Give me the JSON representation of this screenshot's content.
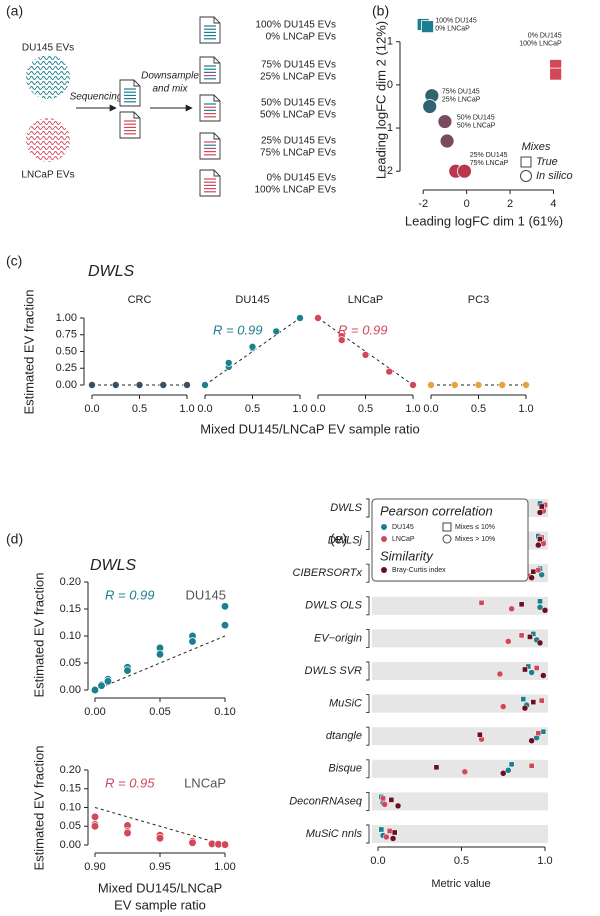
{
  "panel_labels": [
    "(a)",
    "(b)",
    "(c)",
    "(d)",
    "(e)"
  ],
  "diagram": {
    "samples": [
      "DU145 EVs",
      "LNCaP EVs"
    ],
    "step1": "Sequencing",
    "step2": [
      "Downsample",
      "and mix"
    ],
    "mixes": [
      [
        "100% DU145 EVs",
        "0% LNCaP EVs"
      ],
      [
        "75% DU145 EVs",
        "25% LNCaP EVs"
      ],
      [
        "50% DU145 EVs",
        "50% LNCaP EVs"
      ],
      [
        "25% DU145 EVs",
        "75% LNCaP EVs"
      ],
      [
        "0% DU145 EVs",
        "100% LNCaP EVs"
      ]
    ]
  },
  "chart_data": [
    {
      "type": "scatter_groups",
      "xlabel": "Leading logFC dim 1 (61%)",
      "ylabel": "Leading logFC dim 2 (12%)",
      "xlim": [
        -2.7,
        4.3
      ],
      "xticks": [
        -2,
        0,
        2,
        4
      ],
      "ylim": [
        -2.25,
        1.55
      ],
      "yticks": [
        -2,
        -1,
        0,
        1
      ],
      "legend_title": "Mixes",
      "legend": [
        {
          "label": "True",
          "shape": "square"
        },
        {
          "label": "In silico",
          "shape": "circle"
        }
      ],
      "groups": [
        {
          "label": [
            "100% DU145",
            "0% LNCaP"
          ],
          "color": "#1b7f8f",
          "shape": "square",
          "x": [
            -2.0,
            -1.8
          ],
          "y": [
            1.4,
            1.35
          ]
        },
        {
          "label": [
            "0% DU145",
            "100% LNCaP"
          ],
          "color": "#d3475b",
          "shape": "square",
          "x": [
            4.1,
            4.1
          ],
          "y": [
            0.45,
            0.25
          ]
        },
        {
          "label": [
            "75% DU145",
            "25% LNCaP"
          ],
          "color": "#2f6273",
          "shape": "circle",
          "x": [
            -1.6,
            -1.7
          ],
          "y": [
            -0.25,
            -0.5
          ]
        },
        {
          "label": [
            "50% DU145",
            "50% LNCaP"
          ],
          "color": "#7a4a5e",
          "shape": "circle",
          "x": [
            -1.0,
            -0.9
          ],
          "y": [
            -0.85,
            -1.3
          ]
        },
        {
          "label": [
            "25% DU145",
            "75% LNCaP"
          ],
          "color": "#b8374f",
          "shape": "circle",
          "x": [
            -0.5,
            -0.1
          ],
          "y": [
            -2.0,
            -2.0
          ]
        }
      ]
    },
    {
      "type": "facet_scatter",
      "title": "DWLS",
      "ylabel": "Estimated EV fraction",
      "xlabel": "Mixed DU145/LNCaP EV sample ratio",
      "ylim": [
        0,
        1
      ],
      "yticks": [
        {
          "value": 0,
          "label": "0.00"
        },
        0.25,
        {
          "value": 0.5,
          "label": "0.50"
        },
        0.75,
        {
          "value": 1,
          "label": "1.00"
        }
      ],
      "xlim": [
        0,
        1
      ],
      "xticks": [
        {
          "value": 0,
          "label": "0.0"
        },
        0.5,
        {
          "value": 1,
          "label": "1.0"
        }
      ],
      "facets": [
        {
          "name": "CRC",
          "color": "#3b4f63",
          "x": [
            0,
            0.25,
            0.5,
            0.75,
            1
          ],
          "values": [
            0,
            0,
            0,
            0,
            0
          ],
          "reference": {
            "x": [
              0,
              1
            ],
            "y": [
              0,
              0
            ]
          }
        },
        {
          "name": "DU145",
          "color": "#1b7f8f",
          "annotation": "R = 0.99",
          "x": [
            0,
            0.25,
            0.25,
            0.5,
            0.5,
            0.75,
            1
          ],
          "values": [
            0,
            0.27,
            0.33,
            0.55,
            0.57,
            0.8,
            1
          ],
          "reference": {
            "x": [
              0,
              1
            ],
            "y": [
              0,
              1
            ]
          }
        },
        {
          "name": "LNCaP",
          "color": "#d3475b",
          "annotation": "R = 0.99",
          "x": [
            0,
            0.25,
            0.25,
            0.5,
            0.75,
            1
          ],
          "values": [
            1,
            0.73,
            0.67,
            0.45,
            0.2,
            0
          ],
          "reference": {
            "x": [
              0,
              1
            ],
            "y": [
              1,
              0
            ]
          }
        },
        {
          "name": "PC3",
          "color": "#e8a23c",
          "x": [
            0,
            0.25,
            0.5,
            0.75,
            1
          ],
          "values": [
            0,
            0,
            0,
            0,
            0
          ],
          "reference": {
            "x": [
              0,
              1
            ],
            "y": [
              0,
              0
            ]
          }
        }
      ]
    },
    {
      "type": "scatter_ref",
      "title": "DWLS",
      "annotation": "R = 0.99",
      "label": "DU145",
      "color": "#1b7f8f",
      "ylabel": "Estimated EV fraction",
      "xlim": [
        0,
        0.1
      ],
      "xticks": [
        {
          "value": 0,
          "label": "0.00"
        },
        0.05,
        {
          "value": 0.1,
          "label": "0.10"
        }
      ],
      "ylim": [
        0,
        0.2
      ],
      "yticks": [
        {
          "value": 0,
          "label": "0.00"
        },
        0.05,
        {
          "value": 0.1,
          "label": "0.10"
        },
        0.15,
        {
          "value": 0.2,
          "label": "0.20"
        }
      ],
      "x": [
        0,
        0.005,
        0.005,
        0.01,
        0.01,
        0.025,
        0.025,
        0.05,
        0.05,
        0.075,
        0.075,
        0.1,
        0.1
      ],
      "values": [
        0,
        0.01,
        0.008,
        0.02,
        0.016,
        0.042,
        0.036,
        0.078,
        0.066,
        0.1,
        0.09,
        0.155,
        0.12
      ],
      "reference": {
        "x": [
          0,
          0.1
        ],
        "y": [
          0,
          0.1
        ]
      }
    },
    {
      "type": "scatter_ref",
      "annotation": "R = 0.95",
      "label": "LNCaP",
      "color": "#d3475b",
      "ylabel": "Estimated EV fraction",
      "xlabel": [
        "Mixed DU145/LNCaP",
        "EV sample ratio"
      ],
      "xlim": [
        0.9,
        1
      ],
      "xticks": [
        {
          "value": 0.9,
          "label": "0.90"
        },
        0.95,
        {
          "value": 1,
          "label": "1.00"
        }
      ],
      "ylim": [
        0,
        0.2
      ],
      "yticks": [
        {
          "value": 0,
          "label": "0.00"
        },
        0.05,
        {
          "value": 0.1,
          "label": "0.10"
        },
        0.15,
        {
          "value": 0.2,
          "label": "0.20"
        }
      ],
      "x": [
        0.9,
        0.9,
        0.9,
        0.925,
        0.925,
        0.925,
        0.95,
        0.95,
        0.975,
        0.975,
        0.99,
        0.995,
        1
      ],
      "values": [
        0.075,
        0.055,
        0.05,
        0.052,
        0.036,
        0.032,
        0.026,
        0.018,
        0.01,
        0.006,
        0.003,
        0.002,
        0.001
      ],
      "reference": {
        "x": [
          0.9,
          1
        ],
        "y": [
          0.1,
          0
        ]
      }
    },
    {
      "type": "dot_rows",
      "xlabel": "Metric value",
      "xlim": [
        0,
        1
      ],
      "xticks": [
        {
          "value": 0,
          "label": "0.0"
        },
        0.5,
        {
          "value": 1,
          "label": "1.0"
        }
      ],
      "categories": [
        "DWLS",
        "DWLSj",
        "CIBERSORTx",
        "DWLS OLS",
        "EV−origin",
        "DWLS SVR",
        "MuSiC",
        "dtangle",
        "Bisque",
        "DeconRNAseq",
        "MuSiC nnls"
      ],
      "legend_titles": [
        "Pearson correlation",
        "Similarity"
      ],
      "shape_legend": [
        "Mixes ≤ 10%",
        "Mixes > 10%"
      ],
      "series": [
        {
          "name": "DU145",
          "color": "#1b7f8f",
          "small_mixes": [
            0.97,
            0.96,
            0.97,
            0.97,
            0.93,
            0.9,
            0.87,
            0.99,
            0.8,
            0.02,
            0.02
          ],
          "large_mixes": [
            0.99,
            0.99,
            0.98,
            0.97,
            0.95,
            0.92,
            0.89,
            0.95,
            0.78,
            0.03,
            0.03
          ]
        },
        {
          "name": "LNCaP",
          "color": "#d3475b",
          "small_mixes": [
            1.0,
            0.98,
            0.96,
            0.62,
            0.86,
            0.95,
            0.98,
            0.96,
            0.92,
            0.03,
            0.07
          ],
          "large_mixes": [
            0.99,
            0.99,
            0.91,
            0.8,
            0.78,
            0.73,
            0.75,
            0.62,
            0.52,
            0.04,
            0.05
          ]
        },
        {
          "name": "Bray-Curtis index",
          "color": "#6b0f24",
          "small_mixes": [
            0.98,
            0.97,
            0.93,
            0.86,
            0.91,
            0.88,
            0.93,
            0.61,
            0.35,
            0.08,
            0.1
          ],
          "large_mixes": [
            0.97,
            0.96,
            0.92,
            1.0,
            0.97,
            0.99,
            0.88,
            0.92,
            0.75,
            0.12,
            0.09
          ]
        }
      ]
    }
  ]
}
